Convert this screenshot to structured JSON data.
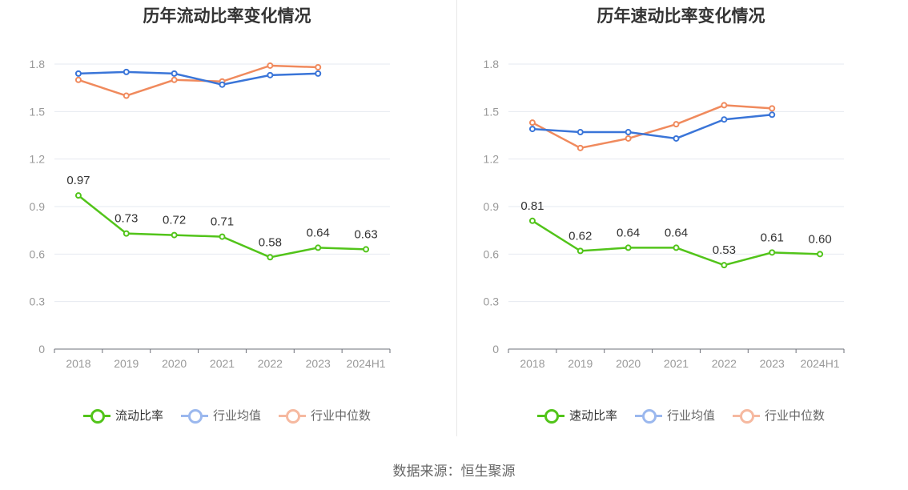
{
  "source": "数据来源：恒生聚源",
  "chart_data": [
    {
      "type": "line",
      "title": "历年流动比率变化情况",
      "categories": [
        "2018",
        "2019",
        "2020",
        "2021",
        "2022",
        "2023",
        "2024H1"
      ],
      "ylim": [
        0,
        1.8
      ],
      "yticks": [
        "0",
        "0.3",
        "0.6",
        "0.9",
        "1.2",
        "1.5",
        "1.8"
      ],
      "grid": true,
      "legend_position": "bottom",
      "series": [
        {
          "name": "流动比率",
          "color": "#52c41a",
          "values": [
            0.97,
            0.73,
            0.72,
            0.71,
            0.58,
            0.64,
            0.63
          ],
          "labels": [
            "0.97",
            "0.73",
            "0.72",
            "0.71",
            "0.58",
            "0.64",
            "0.63"
          ]
        },
        {
          "name": "行业均值",
          "color": "#3a75d8",
          "values": [
            1.74,
            1.75,
            1.74,
            1.67,
            1.73,
            1.74,
            null
          ]
        },
        {
          "name": "行业中位数",
          "color": "#f08a5d",
          "values": [
            1.7,
            1.6,
            1.7,
            1.69,
            1.79,
            1.78,
            null
          ]
        }
      ]
    },
    {
      "type": "line",
      "title": "历年速动比率变化情况",
      "categories": [
        "2018",
        "2019",
        "2020",
        "2021",
        "2022",
        "2023",
        "2024H1"
      ],
      "ylim": [
        0,
        1.8
      ],
      "yticks": [
        "0",
        "0.3",
        "0.6",
        "0.9",
        "1.2",
        "1.5",
        "1.8"
      ],
      "grid": true,
      "legend_position": "bottom",
      "series": [
        {
          "name": "速动比率",
          "color": "#52c41a",
          "values": [
            0.81,
            0.62,
            0.64,
            0.64,
            0.53,
            0.61,
            0.6
          ],
          "labels": [
            "0.81",
            "0.62",
            "0.64",
            "0.64",
            "0.53",
            "0.61",
            "0.60"
          ]
        },
        {
          "name": "行业均值",
          "color": "#3a75d8",
          "values": [
            1.39,
            1.37,
            1.37,
            1.33,
            1.45,
            1.48,
            null
          ]
        },
        {
          "name": "行业中位数",
          "color": "#f08a5d",
          "values": [
            1.43,
            1.27,
            1.33,
            1.42,
            1.54,
            1.52,
            null
          ]
        }
      ]
    }
  ]
}
